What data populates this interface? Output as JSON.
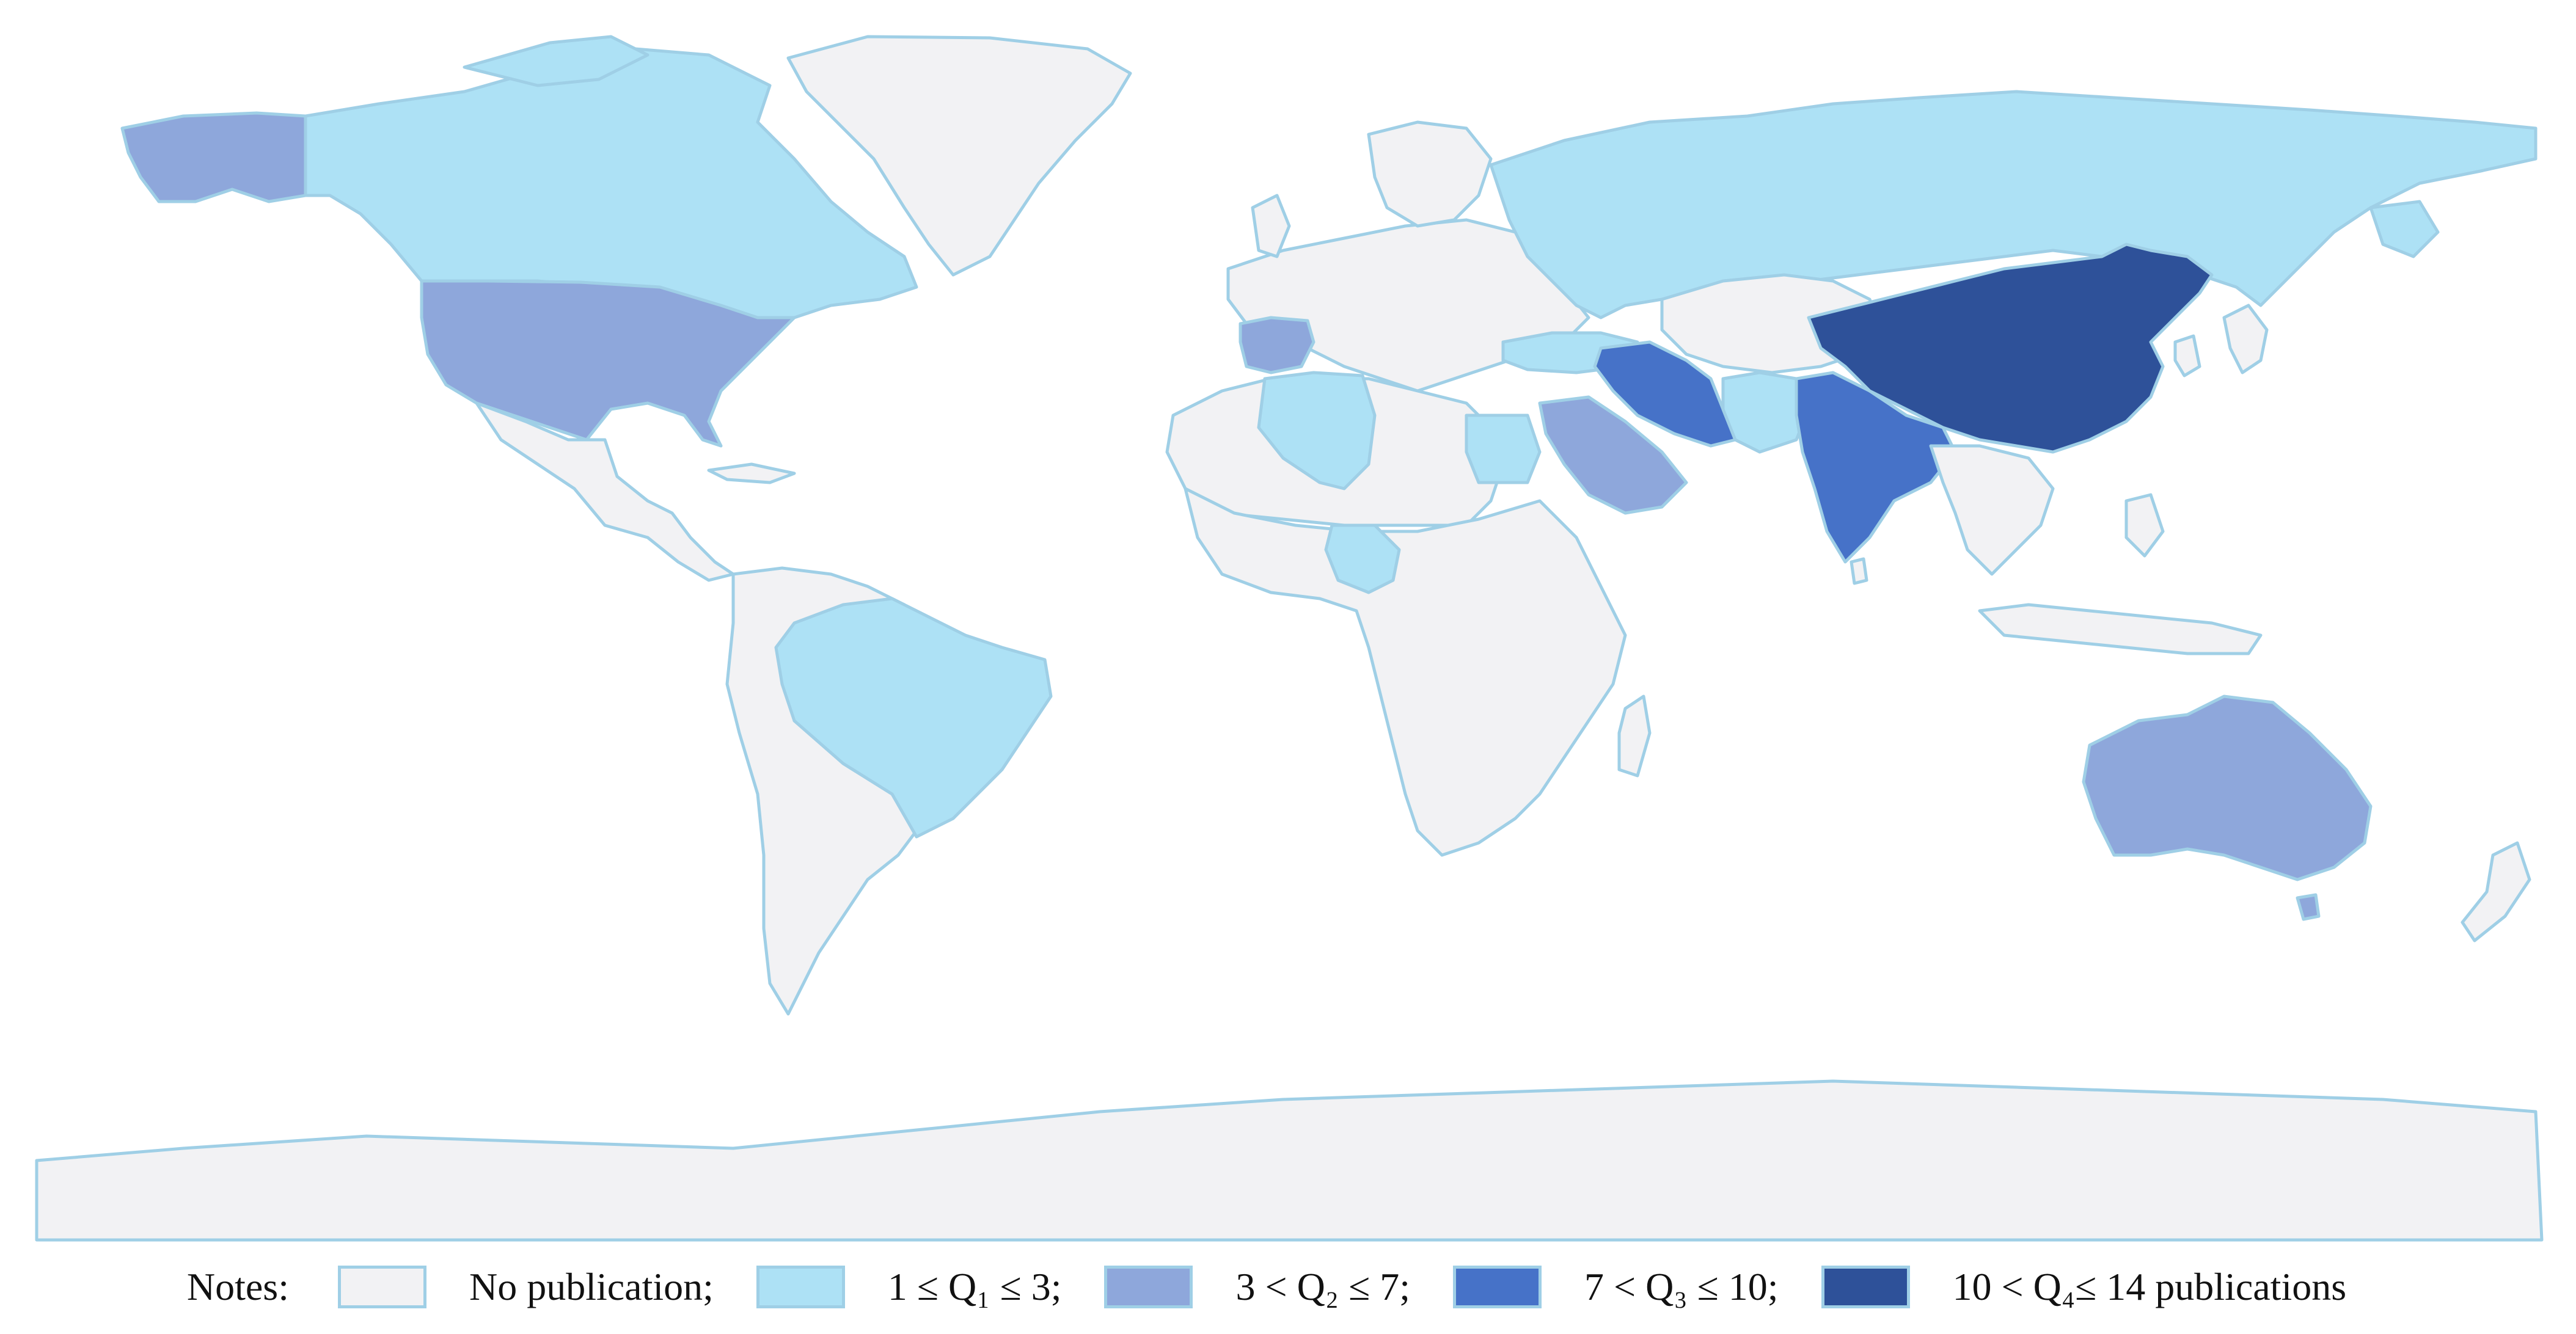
{
  "map": {
    "regions": [
      {
        "name": "Canada",
        "class": 1
      },
      {
        "name": "Alaska (USA)",
        "class": 2
      },
      {
        "name": "USA",
        "class": 2
      },
      {
        "name": "Russia",
        "class": 1
      },
      {
        "name": "Brazil",
        "class": 1
      },
      {
        "name": "Algeria",
        "class": 1
      },
      {
        "name": "Egypt",
        "class": 1
      },
      {
        "name": "Nigeria",
        "class": 1
      },
      {
        "name": "Turkey",
        "class": 1
      },
      {
        "name": "Pakistan",
        "class": 1
      },
      {
        "name": "Spain",
        "class": 2
      },
      {
        "name": "Saudi Arabia",
        "class": 2
      },
      {
        "name": "Australia",
        "class": 2
      },
      {
        "name": "Iran",
        "class": 3
      },
      {
        "name": "India",
        "class": 3
      },
      {
        "name": "China",
        "class": 4
      },
      {
        "name": "Greenland",
        "class": 0
      },
      {
        "name": "Antarctica",
        "class": 0
      }
    ],
    "colors": {
      "none": "#f2f2f4",
      "q1": "#ade1f5",
      "q2": "#8ea7db",
      "q3": "#4672c8",
      "q4": "#2e5199",
      "border": "#9fcfe6",
      "background": "#ffffff"
    }
  },
  "legend": {
    "notes_label": "Notes:",
    "items": [
      {
        "key": "none",
        "label": "No publication;",
        "color": "#f2f2f4"
      },
      {
        "key": "q1",
        "label": "1 ≤ Q₁ ≤ 3;",
        "color": "#ade1f5"
      },
      {
        "key": "q2",
        "label": "3 < Q₂ ≤ 7;",
        "color": "#8ea7db"
      },
      {
        "key": "q3",
        "label": "7 < Q₃ ≤ 10;",
        "color": "#4672c8"
      },
      {
        "key": "q4",
        "label": "10 < Q₄≤ 14 publications",
        "color": "#2e5199"
      }
    ]
  }
}
